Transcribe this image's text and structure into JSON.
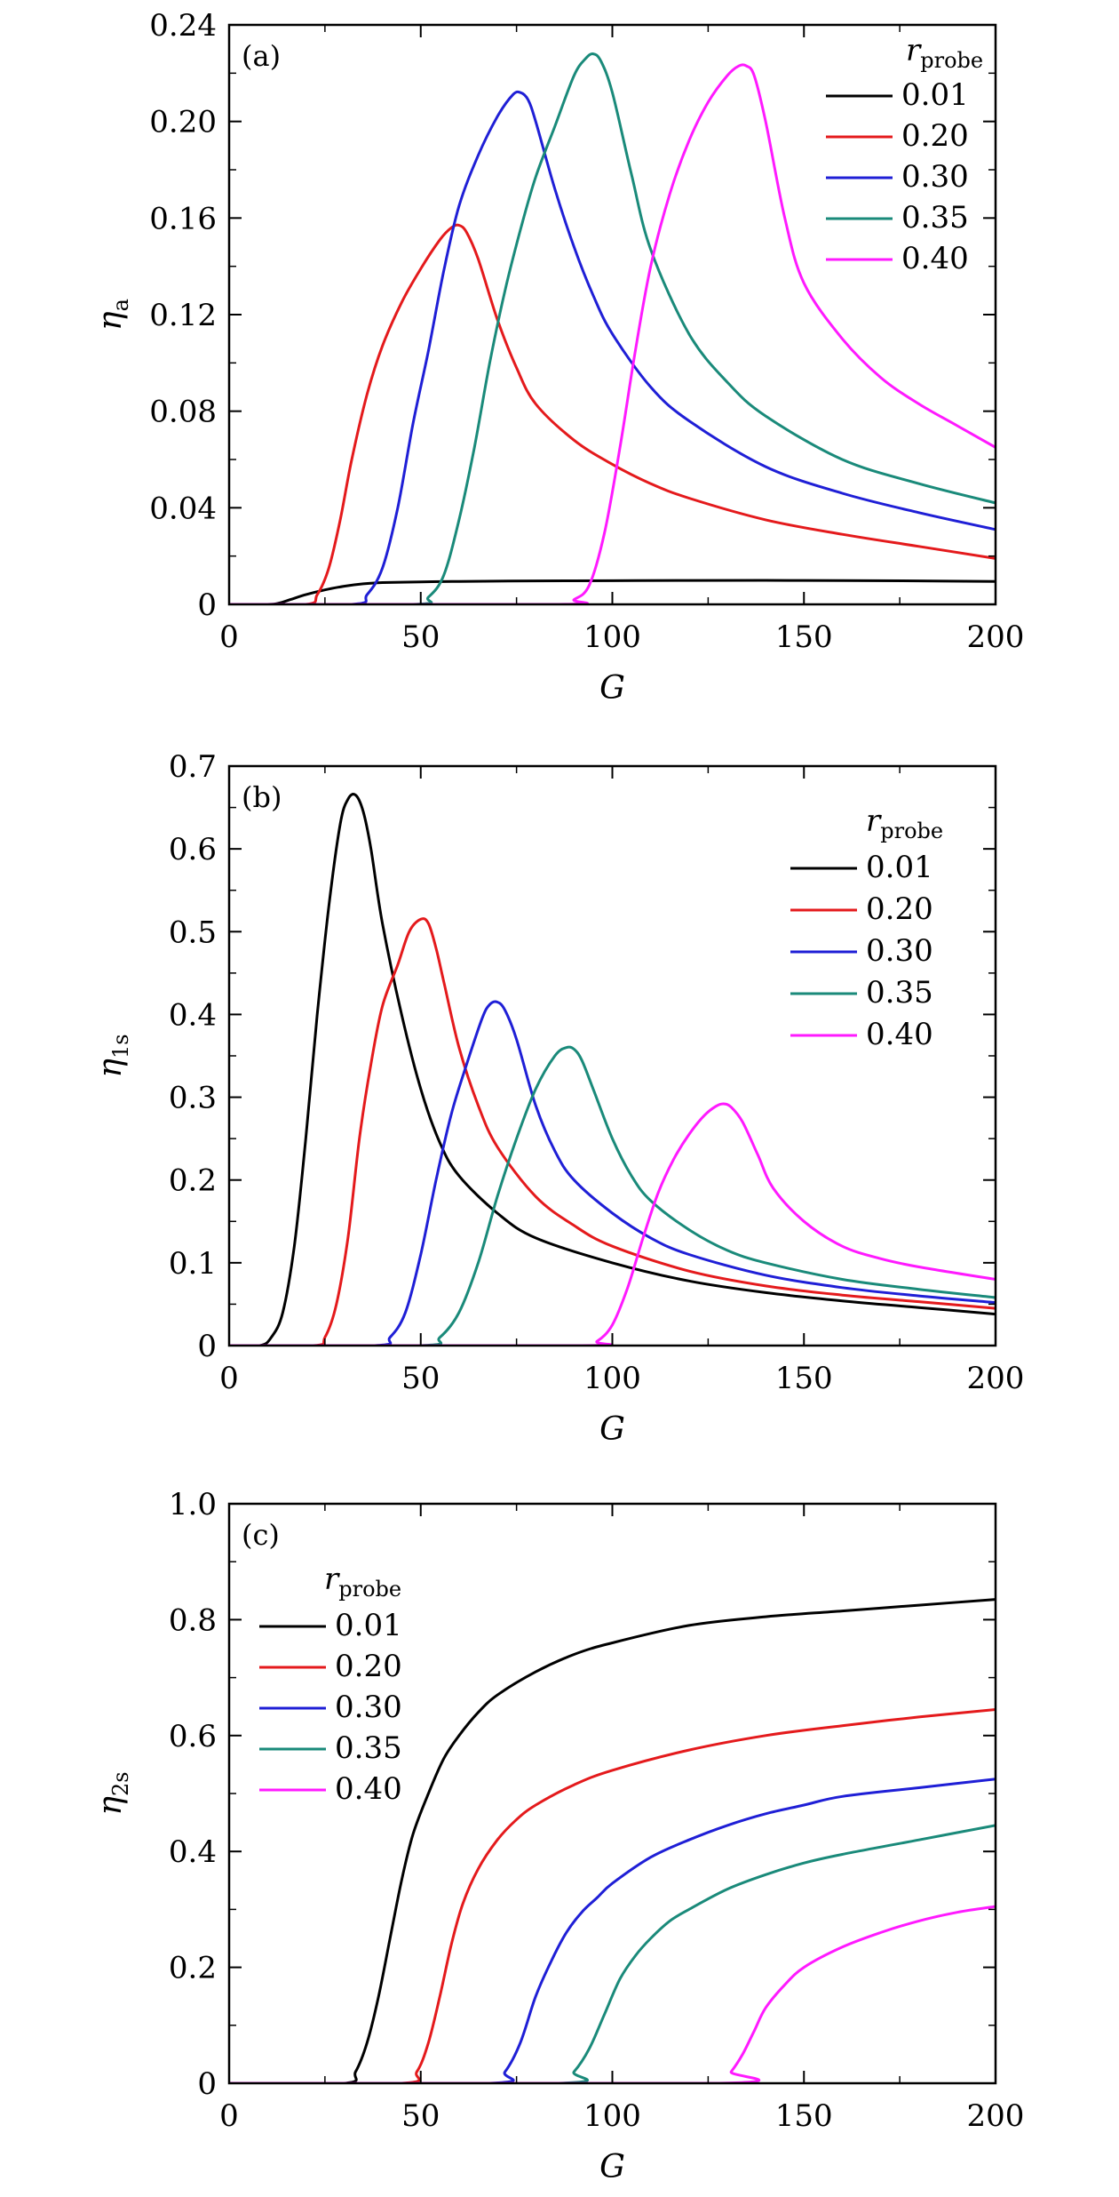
{
  "chart_data": [
    {
      "type": "line",
      "panel_label": "(a)",
      "xlabel": "G",
      "ylabel": {
        "symbol": "η",
        "subscript": "a"
      },
      "xlim": [
        0,
        200
      ],
      "ylim": [
        0,
        0.24
      ],
      "xticks": [
        0,
        50,
        100,
        150,
        200
      ],
      "xtick_labels": [
        "0",
        "50",
        "100",
        "150",
        "200"
      ],
      "yticks": [
        0,
        0.04,
        0.08,
        0.12,
        0.16,
        0.2,
        0.24
      ],
      "ytick_labels": [
        "0",
        "0.04",
        "0.08",
        "0.12",
        "0.16",
        "0.20",
        "0.24"
      ],
      "legend": {
        "title_symbol": "r",
        "title_subscript": "probe",
        "placement": "top-right"
      },
      "series": [
        {
          "name": "0.01",
          "color": "#000000",
          "x": [
            0,
            10,
            13,
            16,
            20,
            25,
            30,
            35,
            40,
            50,
            60,
            80,
            100,
            120,
            150,
            180,
            200
          ],
          "y": [
            0,
            0,
            0.0005,
            0.002,
            0.004,
            0.006,
            0.0075,
            0.0085,
            0.009,
            0.0093,
            0.0095,
            0.0097,
            0.0098,
            0.0099,
            0.0099,
            0.0097,
            0.0095
          ]
        },
        {
          "name": "0.20",
          "color": "#e41a1c",
          "x": [
            0,
            20,
            23,
            26,
            29,
            32,
            36,
            40,
            45,
            50,
            55,
            58,
            60,
            62,
            65,
            70,
            75,
            80,
            90,
            100,
            110,
            120,
            140,
            160,
            180,
            200
          ],
          "y": [
            0,
            0,
            0.004,
            0.015,
            0.035,
            0.06,
            0.087,
            0.107,
            0.125,
            0.139,
            0.151,
            0.156,
            0.157,
            0.154,
            0.143,
            0.118,
            0.098,
            0.083,
            0.068,
            0.058,
            0.05,
            0.044,
            0.035,
            0.029,
            0.024,
            0.019
          ]
        },
        {
          "name": "0.30",
          "color": "#1f1fd6",
          "x": [
            0,
            32,
            36,
            40,
            44,
            48,
            52,
            56,
            60,
            65,
            70,
            74,
            76,
            78,
            80,
            85,
            90,
            95,
            100,
            110,
            120,
            140,
            160,
            180,
            200
          ],
          "y": [
            0,
            0,
            0.004,
            0.015,
            0.04,
            0.075,
            0.105,
            0.138,
            0.165,
            0.186,
            0.202,
            0.211,
            0.212,
            0.209,
            0.2,
            0.172,
            0.148,
            0.128,
            0.112,
            0.09,
            0.076,
            0.057,
            0.046,
            0.038,
            0.031
          ]
        },
        {
          "name": "0.35",
          "color": "#1a8a7a",
          "x": [
            0,
            48,
            52,
            56,
            60,
            64,
            68,
            72,
            76,
            80,
            85,
            90,
            93,
            95,
            97,
            100,
            105,
            110,
            120,
            130,
            140,
            160,
            180,
            200
          ],
          "y": [
            0,
            0,
            0.003,
            0.012,
            0.035,
            0.065,
            0.1,
            0.13,
            0.155,
            0.177,
            0.198,
            0.219,
            0.226,
            0.228,
            0.225,
            0.212,
            0.178,
            0.147,
            0.112,
            0.092,
            0.078,
            0.06,
            0.05,
            0.042
          ]
        },
        {
          "name": "0.40",
          "color": "#ff1aff",
          "x": [
            0,
            86,
            90,
            94,
            98,
            102,
            106,
            110,
            115,
            120,
            125,
            130,
            133,
            135,
            137,
            140,
            145,
            150,
            160,
            170,
            180,
            190,
            200
          ],
          "y": [
            0,
            0,
            0.002,
            0.008,
            0.03,
            0.065,
            0.105,
            0.14,
            0.17,
            0.192,
            0.208,
            0.219,
            0.223,
            0.223,
            0.219,
            0.2,
            0.16,
            0.133,
            0.11,
            0.094,
            0.083,
            0.074,
            0.065
          ]
        }
      ]
    },
    {
      "type": "line",
      "panel_label": "(b)",
      "xlabel": "G",
      "ylabel": {
        "symbol": "η",
        "subscript": "1s"
      },
      "xlim": [
        0,
        200
      ],
      "ylim": [
        0,
        0.7
      ],
      "xticks": [
        0,
        50,
        100,
        150,
        200
      ],
      "xtick_labels": [
        "0",
        "50",
        "100",
        "150",
        "200"
      ],
      "yticks": [
        0,
        0.1,
        0.2,
        0.3,
        0.4,
        0.5,
        0.6,
        0.7
      ],
      "ytick_labels": [
        "0",
        "0.1",
        "0.2",
        "0.3",
        "0.4",
        "0.5",
        "0.6",
        "0.7"
      ],
      "legend": {
        "title_symbol": "r",
        "title_subscript": "probe",
        "placement": "top-right"
      },
      "series": [
        {
          "name": "0.01",
          "color": "#000000",
          "x": [
            0,
            8,
            11,
            14,
            17,
            20,
            23,
            26,
            29,
            31,
            33,
            35,
            37,
            40,
            45,
            50,
            55,
            60,
            70,
            80,
            100,
            120,
            140,
            160,
            180,
            200
          ],
          "y": [
            0,
            0,
            0.01,
            0.04,
            0.12,
            0.25,
            0.4,
            0.53,
            0.63,
            0.66,
            0.665,
            0.645,
            0.6,
            0.51,
            0.4,
            0.31,
            0.245,
            0.205,
            0.16,
            0.13,
            0.1,
            0.078,
            0.064,
            0.054,
            0.046,
            0.038
          ]
        },
        {
          "name": "0.20",
          "color": "#e41a1c",
          "x": [
            0,
            22,
            25,
            28,
            31,
            34,
            37,
            40,
            44,
            47,
            50,
            52,
            54,
            56,
            60,
            65,
            70,
            80,
            90,
            100,
            120,
            140,
            160,
            180,
            200
          ],
          "y": [
            0,
            0,
            0.01,
            0.05,
            0.13,
            0.25,
            0.34,
            0.41,
            0.46,
            0.5,
            0.515,
            0.51,
            0.48,
            0.44,
            0.36,
            0.29,
            0.24,
            0.18,
            0.145,
            0.12,
            0.09,
            0.072,
            0.061,
            0.053,
            0.045
          ]
        },
        {
          "name": "0.30",
          "color": "#1f1fd6",
          "x": [
            0,
            38,
            42,
            46,
            50,
            54,
            58,
            62,
            66,
            68,
            70,
            72,
            75,
            80,
            85,
            90,
            100,
            110,
            120,
            140,
            160,
            180,
            200
          ],
          "y": [
            0,
            0,
            0.01,
            0.04,
            0.11,
            0.2,
            0.28,
            0.34,
            0.395,
            0.412,
            0.415,
            0.405,
            0.37,
            0.29,
            0.235,
            0.2,
            0.16,
            0.13,
            0.11,
            0.085,
            0.07,
            0.06,
            0.052
          ]
        },
        {
          "name": "0.35",
          "color": "#1a8a7a",
          "x": [
            0,
            50,
            55,
            60,
            65,
            70,
            75,
            80,
            85,
            88,
            90,
            92,
            95,
            100,
            105,
            110,
            120,
            130,
            140,
            160,
            180,
            200
          ],
          "y": [
            0,
            0,
            0.01,
            0.04,
            0.1,
            0.18,
            0.25,
            0.31,
            0.35,
            0.36,
            0.358,
            0.345,
            0.31,
            0.25,
            0.205,
            0.175,
            0.14,
            0.115,
            0.1,
            0.08,
            0.068,
            0.058
          ]
        },
        {
          "name": "0.40",
          "color": "#ff1aff",
          "x": [
            0,
            92,
            96,
            100,
            104,
            108,
            112,
            116,
            120,
            124,
            127,
            129,
            131,
            134,
            138,
            142,
            150,
            160,
            170,
            180,
            200
          ],
          "y": [
            0,
            0,
            0.005,
            0.025,
            0.07,
            0.13,
            0.185,
            0.225,
            0.255,
            0.278,
            0.289,
            0.292,
            0.288,
            0.27,
            0.23,
            0.19,
            0.15,
            0.12,
            0.105,
            0.095,
            0.08
          ]
        }
      ]
    },
    {
      "type": "line",
      "panel_label": "(c)",
      "xlabel": "G",
      "ylabel": {
        "symbol": "η",
        "subscript": "2s"
      },
      "xlim": [
        0,
        200
      ],
      "ylim": [
        0,
        1.0
      ],
      "xticks": [
        0,
        50,
        100,
        150,
        200
      ],
      "xtick_labels": [
        "0",
        "50",
        "100",
        "150",
        "200"
      ],
      "yticks": [
        0,
        0.2,
        0.4,
        0.6,
        0.8,
        1.0
      ],
      "ytick_labels": [
        "0",
        "0.2",
        "0.4",
        "0.6",
        "0.8",
        "1.0"
      ],
      "legend": {
        "title_symbol": "r",
        "title_subscript": "probe",
        "placement": "top-left"
      },
      "series": [
        {
          "name": "0.01",
          "color": "#000000",
          "x": [
            0,
            30,
            33,
            36,
            39,
            42,
            45,
            48,
            52,
            56,
            60,
            65,
            70,
            80,
            90,
            100,
            120,
            140,
            160,
            180,
            200
          ],
          "y": [
            0,
            0,
            0.02,
            0.07,
            0.15,
            0.25,
            0.35,
            0.43,
            0.5,
            0.56,
            0.6,
            0.64,
            0.67,
            0.71,
            0.74,
            0.76,
            0.79,
            0.805,
            0.815,
            0.825,
            0.835
          ]
        },
        {
          "name": "0.20",
          "color": "#e41a1c",
          "x": [
            0,
            45,
            49,
            52,
            55,
            58,
            61,
            65,
            70,
            75,
            80,
            90,
            100,
            120,
            140,
            160,
            180,
            200
          ],
          "y": [
            0,
            0,
            0.02,
            0.07,
            0.15,
            0.24,
            0.31,
            0.37,
            0.42,
            0.455,
            0.48,
            0.515,
            0.54,
            0.575,
            0.6,
            0.617,
            0.632,
            0.645
          ]
        },
        {
          "name": "0.30",
          "color": "#1f1fd6",
          "x": [
            0,
            68,
            72,
            76,
            80,
            84,
            88,
            92,
            96,
            100,
            110,
            120,
            130,
            140,
            150,
            160,
            180,
            200
          ],
          "y": [
            0,
            0,
            0.02,
            0.07,
            0.15,
            0.21,
            0.26,
            0.295,
            0.32,
            0.345,
            0.39,
            0.42,
            0.445,
            0.465,
            0.48,
            0.495,
            0.51,
            0.525
          ]
        },
        {
          "name": "0.35",
          "color": "#1a8a7a",
          "x": [
            0,
            86,
            90,
            94,
            98,
            102,
            106,
            110,
            115,
            120,
            130,
            140,
            150,
            160,
            180,
            200
          ],
          "y": [
            0,
            0,
            0.02,
            0.06,
            0.12,
            0.18,
            0.22,
            0.25,
            0.28,
            0.3,
            0.335,
            0.36,
            0.38,
            0.395,
            0.42,
            0.445
          ]
        },
        {
          "name": "0.40",
          "color": "#ff1aff",
          "x": [
            0,
            128,
            131,
            134,
            137,
            140,
            145,
            150,
            160,
            170,
            180,
            190,
            200
          ],
          "y": [
            0,
            0,
            0.02,
            0.05,
            0.09,
            0.13,
            0.17,
            0.2,
            0.235,
            0.26,
            0.28,
            0.295,
            0.305
          ]
        }
      ]
    }
  ]
}
